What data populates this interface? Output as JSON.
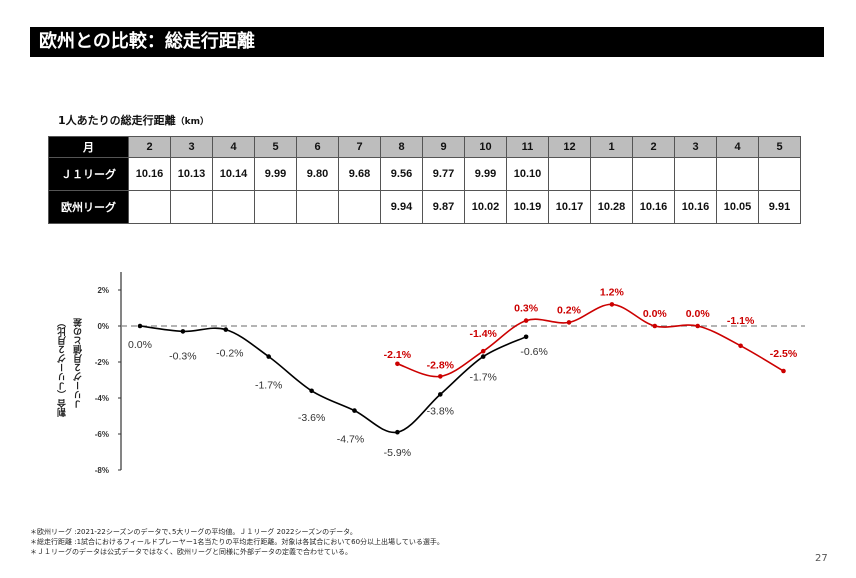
{
  "header": {
    "title": "欧州との比較：総走行距離"
  },
  "table": {
    "title": "1人あたりの総走行距離",
    "unit": "（km）",
    "corner_label": "月",
    "months": [
      "2",
      "3",
      "4",
      "5",
      "6",
      "7",
      "8",
      "9",
      "10",
      "11",
      "12",
      "1",
      "2",
      "3",
      "4",
      "5"
    ],
    "rows": [
      {
        "label": "Ｊ１リーグ",
        "values": [
          "10.16",
          "10.13",
          "10.14",
          "9.99",
          "9.80",
          "9.68",
          "9.56",
          "9.77",
          "9.99",
          "10.10",
          "",
          "",
          "",
          "",
          "",
          ""
        ]
      },
      {
        "label": "欧州リーグ",
        "values": [
          "",
          "",
          "",
          "",
          "",
          "",
          "9.94",
          "9.87",
          "10.02",
          "10.19",
          "10.17",
          "10.28",
          "10.16",
          "10.16",
          "10.05",
          "9.91"
        ]
      }
    ]
  },
  "chart_data": {
    "type": "line",
    "title": "",
    "ylabel_line1": "割合（Ｊリーグ２月比）",
    "ylabel_line2": "Ｊリーグ２月値との差",
    "xlabel": "",
    "x": [
      "2",
      "3",
      "4",
      "5",
      "6",
      "7",
      "8",
      "9",
      "10",
      "11",
      "12",
      "1",
      "2",
      "3",
      "4",
      "5"
    ],
    "ylim": [
      -8,
      3
    ],
    "yticks": [
      2,
      0,
      -2,
      -4,
      -6,
      -8
    ],
    "ytick_labels": [
      "2%",
      "0%",
      "-2%",
      "-4%",
      "-6%",
      "-8%"
    ],
    "reference_line": {
      "y": 0,
      "style": "dashed",
      "color": "#888888"
    },
    "series": [
      {
        "name": "Ｊ１リーグ",
        "color": "#000000",
        "label_color": "#333333",
        "values": [
          0.0,
          -0.3,
          -0.2,
          -1.7,
          -3.6,
          -4.7,
          -5.9,
          -3.8,
          -1.7,
          -0.6,
          null,
          null,
          null,
          null,
          null,
          null
        ],
        "labels": [
          "0.0%",
          "-0.3%",
          "-0.2%",
          "-1.7%",
          "-3.6%",
          "-4.7%",
          "-5.9%",
          "-3.8%",
          "-1.7%",
          "-0.6%",
          "",
          "",
          "",
          "",
          "",
          ""
        ]
      },
      {
        "name": "欧州リーグ",
        "color": "#cc0000",
        "label_color": "#cc0000",
        "values": [
          null,
          null,
          null,
          null,
          null,
          null,
          -2.1,
          -2.8,
          -1.4,
          0.3,
          0.2,
          1.2,
          0.0,
          0.0,
          -1.1,
          -2.5
        ],
        "labels": [
          "",
          "",
          "",
          "",
          "",
          "",
          "-2.1%",
          "-2.8%",
          "-1.4%",
          "0.3%",
          "0.2%",
          "1.2%",
          "0.0%",
          "0.0%",
          "-1.1%",
          "-2.5%"
        ]
      }
    ]
  },
  "notes": [
    "＊欧州リーグ :2021-22シーズンのデータで､5大リーグの平均値。Ｊ１リーグ 2022シーズンのデータ。",
    "＊総走行距離 :1試合におけるフィールドプレーヤー1名当たりの平均走行距離。対象は各試合において60分以上出場している選手。",
    "＊Ｊ１リーグのデータは公式データではなく、欧州リーグと同様に外部データの定義で合わせている。"
  ],
  "page_number": "27"
}
